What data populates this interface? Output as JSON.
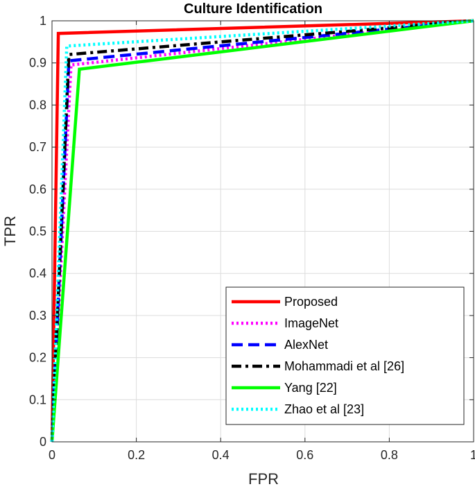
{
  "chart_data": {
    "type": "line",
    "title": "Culture Identification",
    "xlabel": "FPR",
    "ylabel": "TPR",
    "xlim": [
      0,
      1
    ],
    "ylim": [
      0,
      1
    ],
    "xticks": [
      0,
      0.2,
      0.4,
      0.6,
      0.8,
      1
    ],
    "xtick_labels": [
      "0",
      "0.2",
      "0.4",
      "0.6",
      "0.8",
      "1"
    ],
    "yticks": [
      0,
      0.1,
      0.2,
      0.3,
      0.4,
      0.5,
      0.6,
      0.7,
      0.8,
      0.9,
      1
    ],
    "ytick_labels": [
      "0",
      "0.1",
      "0.2",
      "0.3",
      "0.4",
      "0.5",
      "0.6",
      "0.7",
      "0.8",
      "0.9",
      "1"
    ],
    "grid": true,
    "legend_position": "bottom-right",
    "series": [
      {
        "name": "Proposed",
        "color": "#ff0000",
        "style": "solid",
        "x": [
          0,
          0.015,
          1
        ],
        "y": [
          0,
          0.97,
          1
        ]
      },
      {
        "name": "ImageNet",
        "color": "#ff00ff",
        "style": "dotted",
        "x": [
          0,
          0.045,
          1
        ],
        "y": [
          0,
          0.895,
          1
        ]
      },
      {
        "name": "AlexNet",
        "color": "#0000ff",
        "style": "dashed",
        "x": [
          0,
          0.04,
          1
        ],
        "y": [
          0,
          0.905,
          1
        ]
      },
      {
        "name": "Mohammadi et al [26]",
        "color": "#000000",
        "style": "dashdot",
        "x": [
          0,
          0.04,
          1
        ],
        "y": [
          0,
          0.92,
          1
        ]
      },
      {
        "name": "Yang [22]",
        "color": "#00ff00",
        "style": "solid",
        "x": [
          0,
          0.065,
          1
        ],
        "y": [
          0,
          0.885,
          1
        ]
      },
      {
        "name": "Zhao et al [23]",
        "color": "#00ffff",
        "style": "dotted",
        "x": [
          0,
          0.035,
          1
        ],
        "y": [
          0,
          0.94,
          1
        ]
      }
    ]
  }
}
